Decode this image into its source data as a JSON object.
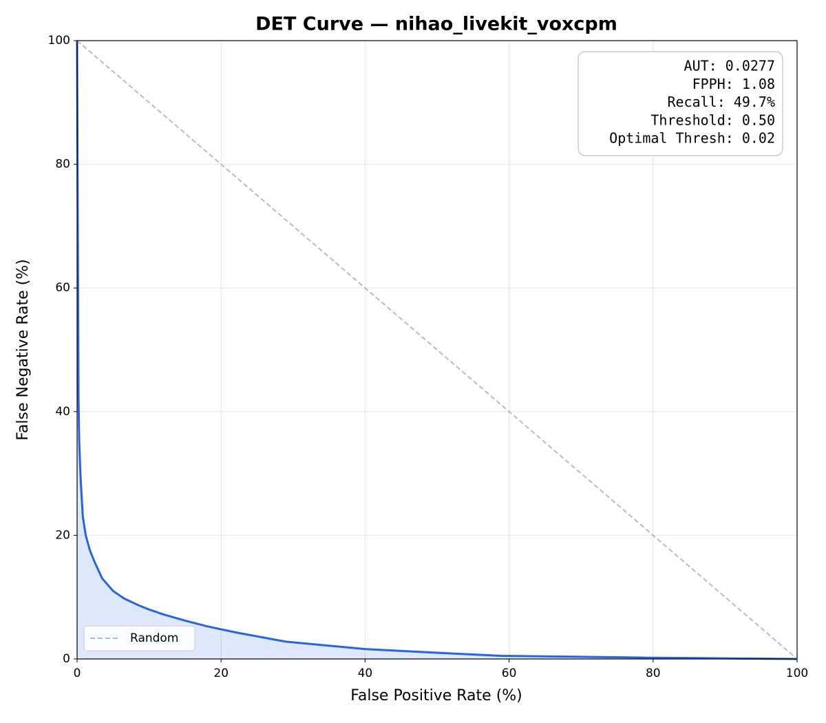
{
  "chart_data": {
    "type": "line",
    "title": "DET Curve — nihao_livekit_voxcpm",
    "xlabel": "False Positive Rate (%)",
    "ylabel": "False Negative Rate (%)",
    "xlim": [
      0,
      100
    ],
    "ylim": [
      0,
      100
    ],
    "xticks": [
      0,
      20,
      40,
      60,
      80,
      100
    ],
    "yticks": [
      0,
      20,
      40,
      60,
      80,
      100
    ],
    "grid": true,
    "legend_loc": "lower left",
    "annotation_lines": [
      "AUT: 0.0277",
      "FPPH: 1.08",
      "Recall: 49.7%",
      "Threshold: 0.50",
      "Optimal Thresh: 0.02"
    ],
    "series": [
      {
        "color": "#2563eb",
        "fill": true,
        "x": [
          0,
          0.1,
          0.2,
          0.3,
          0.5,
          0.8,
          1.2,
          1.8,
          2.5,
          3.5,
          5,
          6.5,
          8.5,
          10,
          12,
          15,
          18,
          22,
          29,
          40,
          50,
          59,
          70,
          80,
          90,
          100
        ],
        "values": [
          100,
          70,
          42,
          35,
          29,
          23,
          20,
          17.5,
          15.5,
          13,
          11,
          9.8,
          8.7,
          8,
          7.2,
          6.2,
          5.3,
          4.3,
          2.8,
          1.6,
          1.0,
          0.5,
          0.35,
          0.2,
          0.1,
          0
        ]
      },
      {
        "name": "Random",
        "color": "#bbbbbb",
        "dashed": true,
        "x": [
          0,
          100
        ],
        "values": [
          100,
          0
        ]
      }
    ]
  }
}
